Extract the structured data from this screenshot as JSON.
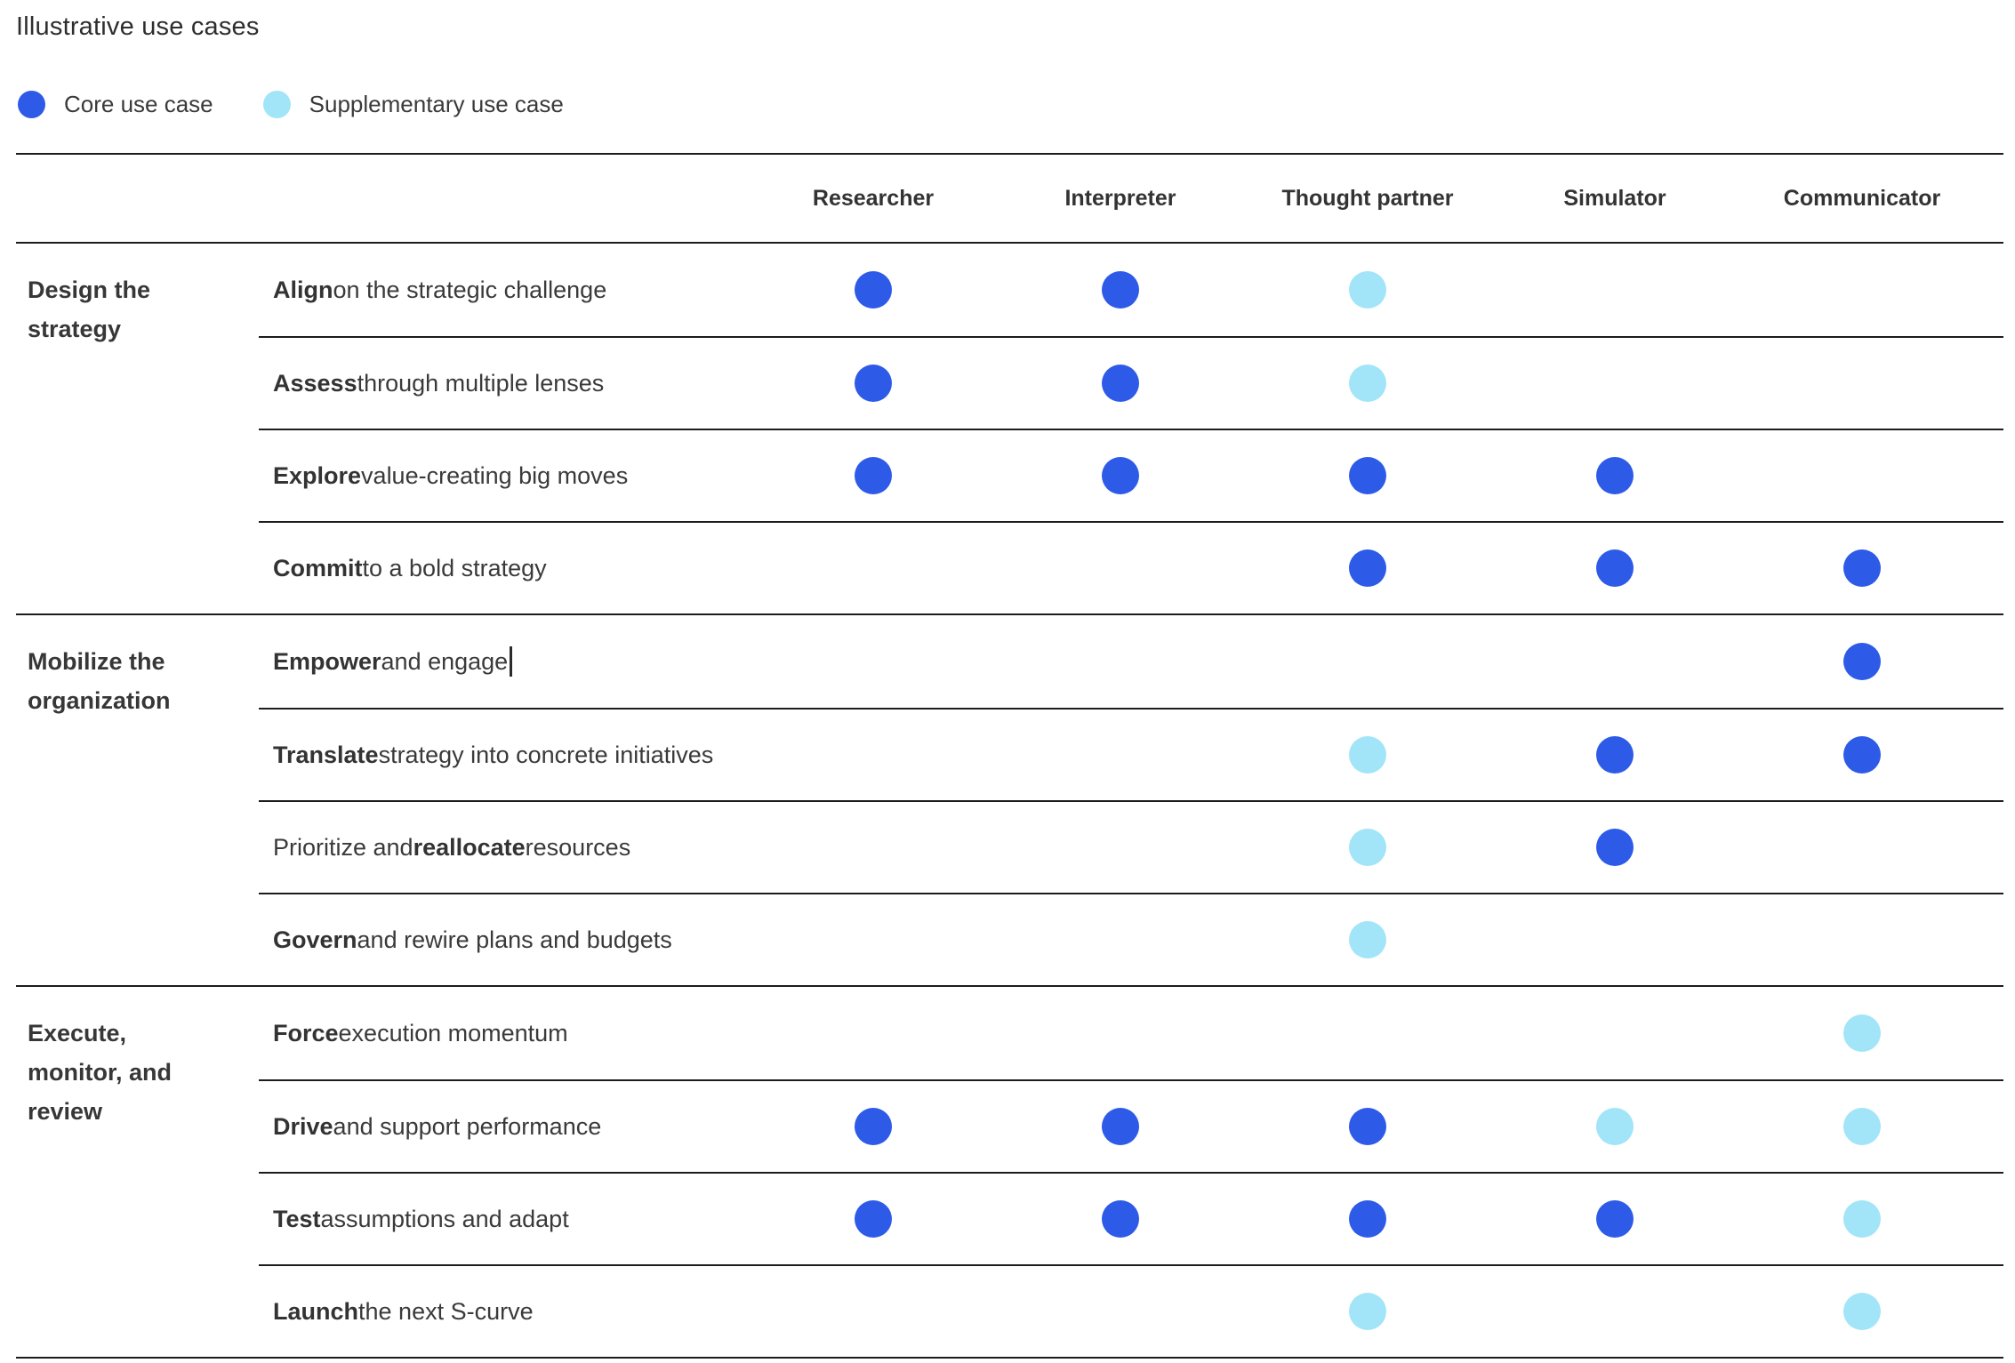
{
  "title": "Illustrative use cases",
  "colors": {
    "core": "#2D5BE8",
    "supplementary": "#A2E5F8"
  },
  "legend": [
    {
      "type": "core",
      "label": "Core use case"
    },
    {
      "type": "supplementary",
      "label": "Supplementary use case"
    }
  ],
  "columns": [
    "Researcher",
    "Interpreter",
    "Thought partner",
    "Simulator",
    "Communicator"
  ],
  "sections": [
    {
      "label": "Design the strategy",
      "rows": [
        {
          "parts": [
            {
              "text": "Align",
              "bold": true
            },
            {
              "text": " on the strategic challenge",
              "bold": false
            }
          ],
          "dots": [
            "core",
            "core",
            "supplementary",
            null,
            null
          ],
          "cursor": false
        },
        {
          "parts": [
            {
              "text": "Assess",
              "bold": true
            },
            {
              "text": " through multiple lenses",
              "bold": false
            }
          ],
          "dots": [
            "core",
            "core",
            "supplementary",
            null,
            null
          ],
          "cursor": false
        },
        {
          "parts": [
            {
              "text": "Explore",
              "bold": true
            },
            {
              "text": " value-creating big moves",
              "bold": false
            }
          ],
          "dots": [
            "core",
            "core",
            "core",
            "core",
            null
          ],
          "cursor": false
        },
        {
          "parts": [
            {
              "text": "Commit",
              "bold": true
            },
            {
              "text": " to a bold strategy",
              "bold": false
            }
          ],
          "dots": [
            null,
            null,
            "core",
            "core",
            "core"
          ],
          "cursor": false
        }
      ]
    },
    {
      "label": "Mobilize the organization",
      "rows": [
        {
          "parts": [
            {
              "text": "Empower",
              "bold": true
            },
            {
              "text": " and engage",
              "bold": false
            }
          ],
          "dots": [
            null,
            null,
            null,
            null,
            "core"
          ],
          "cursor": true
        },
        {
          "parts": [
            {
              "text": "Translate",
              "bold": true
            },
            {
              "text": " strategy into concrete initiatives",
              "bold": false
            }
          ],
          "dots": [
            null,
            null,
            "supplementary",
            "core",
            "core"
          ],
          "cursor": false
        },
        {
          "parts": [
            {
              "text": "Prioritize and ",
              "bold": false
            },
            {
              "text": "reallocate",
              "bold": true
            },
            {
              "text": " resources",
              "bold": false
            }
          ],
          "dots": [
            null,
            null,
            "supplementary",
            "core",
            null
          ],
          "cursor": false
        },
        {
          "parts": [
            {
              "text": "Govern",
              "bold": true
            },
            {
              "text": " and rewire plans and budgets",
              "bold": false
            }
          ],
          "dots": [
            null,
            null,
            "supplementary",
            null,
            null
          ],
          "cursor": false
        }
      ]
    },
    {
      "label": "Execute, monitor, and review",
      "rows": [
        {
          "parts": [
            {
              "text": "Force",
              "bold": true
            },
            {
              "text": " execution momentum",
              "bold": false
            }
          ],
          "dots": [
            null,
            null,
            null,
            null,
            "supplementary"
          ],
          "cursor": false
        },
        {
          "parts": [
            {
              "text": "Drive",
              "bold": true
            },
            {
              "text": " and support performance",
              "bold": false
            }
          ],
          "dots": [
            "core",
            "core",
            "core",
            "supplementary",
            "supplementary"
          ],
          "cursor": false
        },
        {
          "parts": [
            {
              "text": "Test",
              "bold": true
            },
            {
              "text": " assumptions and adapt",
              "bold": false
            }
          ],
          "dots": [
            "core",
            "core",
            "core",
            "core",
            "supplementary"
          ],
          "cursor": false
        },
        {
          "parts": [
            {
              "text": "Launch",
              "bold": true
            },
            {
              "text": " the next S-curve",
              "bold": false
            }
          ],
          "dots": [
            null,
            null,
            "supplementary",
            null,
            "supplementary"
          ],
          "cursor": false
        }
      ]
    }
  ],
  "chart_data": {
    "type": "table",
    "title": "Illustrative use cases",
    "legend_entries": {
      "core": "Core use case",
      "supplementary": "Supplementary use case"
    },
    "columns": [
      "Researcher",
      "Interpreter",
      "Thought partner",
      "Simulator",
      "Communicator"
    ],
    "rows": [
      {
        "group": "Design the strategy",
        "label": "Align on the strategic challenge",
        "values": [
          "core",
          "core",
          "supplementary",
          null,
          null
        ]
      },
      {
        "group": "Design the strategy",
        "label": "Assess through multiple lenses",
        "values": [
          "core",
          "core",
          "supplementary",
          null,
          null
        ]
      },
      {
        "group": "Design the strategy",
        "label": "Explore value-creating big moves",
        "values": [
          "core",
          "core",
          "core",
          "core",
          null
        ]
      },
      {
        "group": "Design the strategy",
        "label": "Commit to a bold strategy",
        "values": [
          null,
          null,
          "core",
          "core",
          "core"
        ]
      },
      {
        "group": "Mobilize the organization",
        "label": "Empower and engage",
        "values": [
          null,
          null,
          null,
          null,
          "core"
        ]
      },
      {
        "group": "Mobilize the organization",
        "label": "Translate strategy into concrete initiatives",
        "values": [
          null,
          null,
          "supplementary",
          "core",
          "core"
        ]
      },
      {
        "group": "Mobilize the organization",
        "label": "Prioritize and reallocate resources",
        "values": [
          null,
          null,
          "supplementary",
          "core",
          null
        ]
      },
      {
        "group": "Mobilize the organization",
        "label": "Govern and rewire plans and budgets",
        "values": [
          null,
          null,
          "supplementary",
          null,
          null
        ]
      },
      {
        "group": "Execute, monitor, and review",
        "label": "Force execution momentum",
        "values": [
          null,
          null,
          null,
          null,
          "supplementary"
        ]
      },
      {
        "group": "Execute, monitor, and review",
        "label": "Drive and support performance",
        "values": [
          "core",
          "core",
          "core",
          "supplementary",
          "supplementary"
        ]
      },
      {
        "group": "Execute, monitor, and review",
        "label": "Test assumptions and adapt",
        "values": [
          "core",
          "core",
          "core",
          "core",
          "supplementary"
        ]
      },
      {
        "group": "Execute, monitor, and review",
        "label": "Launch the next S-curve",
        "values": [
          null,
          null,
          "supplementary",
          null,
          "supplementary"
        ]
      }
    ]
  }
}
